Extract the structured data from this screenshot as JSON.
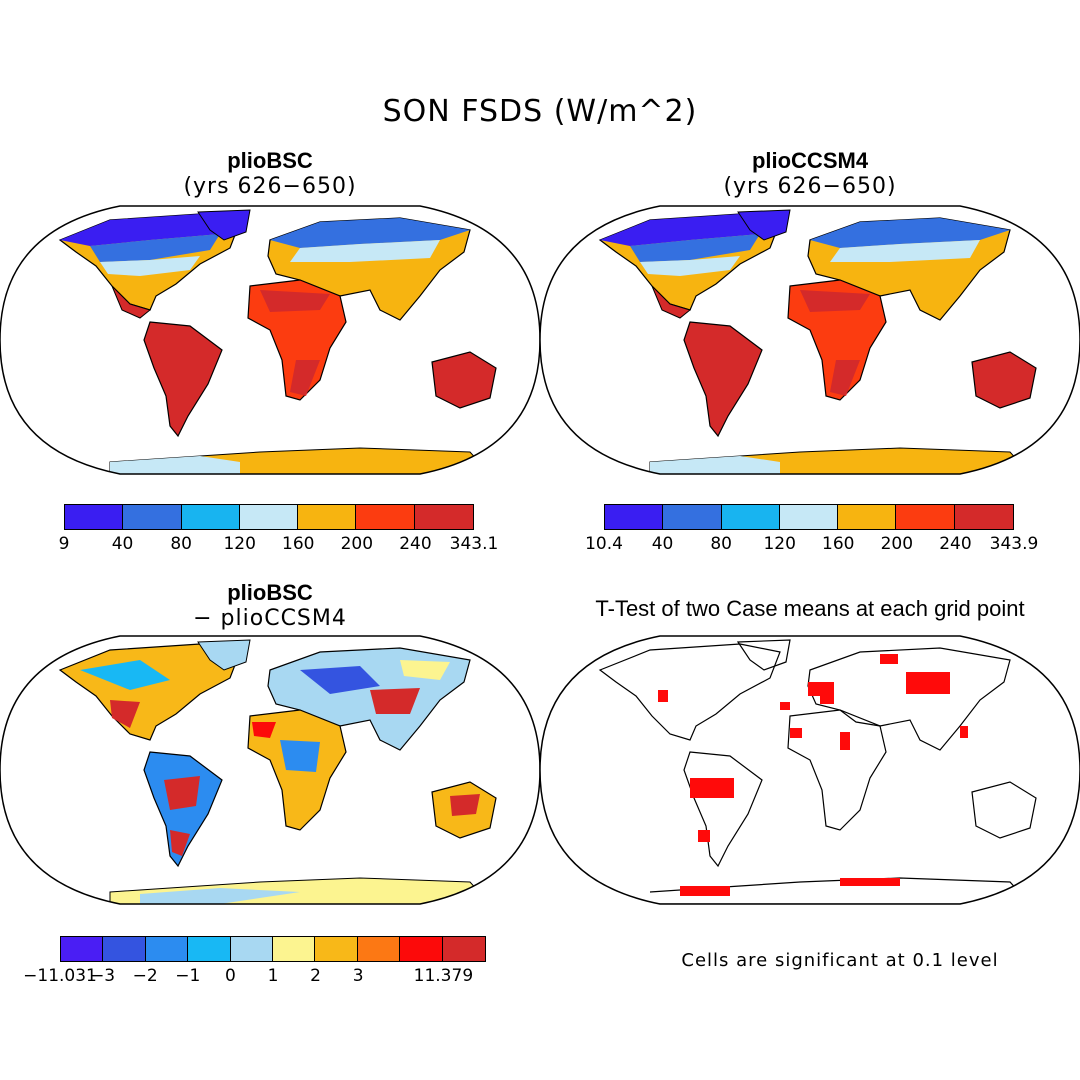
{
  "main_title": "SON FSDS (W/m^2)",
  "panels": [
    {
      "title": "plioBSC",
      "subtitle": "(yrs 626−650)",
      "colorbar": {
        "colors": [
          "#3a1ef2",
          "#3470e0",
          "#18b4f0",
          "#c6e8f6",
          "#f7b410",
          "#fc3c10",
          "#d42a2a"
        ],
        "labels": [
          "9",
          "40",
          "80",
          "120",
          "160",
          "200",
          "240",
          "343.1"
        ]
      }
    },
    {
      "title": "plioCCSM4",
      "subtitle": "(yrs 626−650)",
      "colorbar": {
        "colors": [
          "#3a1ef2",
          "#3470e0",
          "#18b4f0",
          "#c6e8f6",
          "#f7b410",
          "#fc3c10",
          "#d42a2a"
        ],
        "labels": [
          "10.4",
          "40",
          "80",
          "120",
          "160",
          "200",
          "240",
          "343.9"
        ]
      }
    },
    {
      "title": "plioBSC",
      "subtitle": "− plioCCSM4",
      "colorbar": {
        "colors": [
          "#4a1ef4",
          "#3454e0",
          "#2c8cf0",
          "#18b8f4",
          "#a8d8f2",
          "#fcf490",
          "#f8b818",
          "#fc7814",
          "#fc0a0a",
          "#d42a2a"
        ],
        "labels": [
          "−11.031",
          "−3",
          "−2",
          "−1",
          "0",
          "1",
          "2",
          "3",
          "",
          "11.379"
        ]
      }
    },
    {
      "title": "T-Test of two Case means at each grid point",
      "note": "Cells are significant at 0.1 level"
    }
  ]
}
